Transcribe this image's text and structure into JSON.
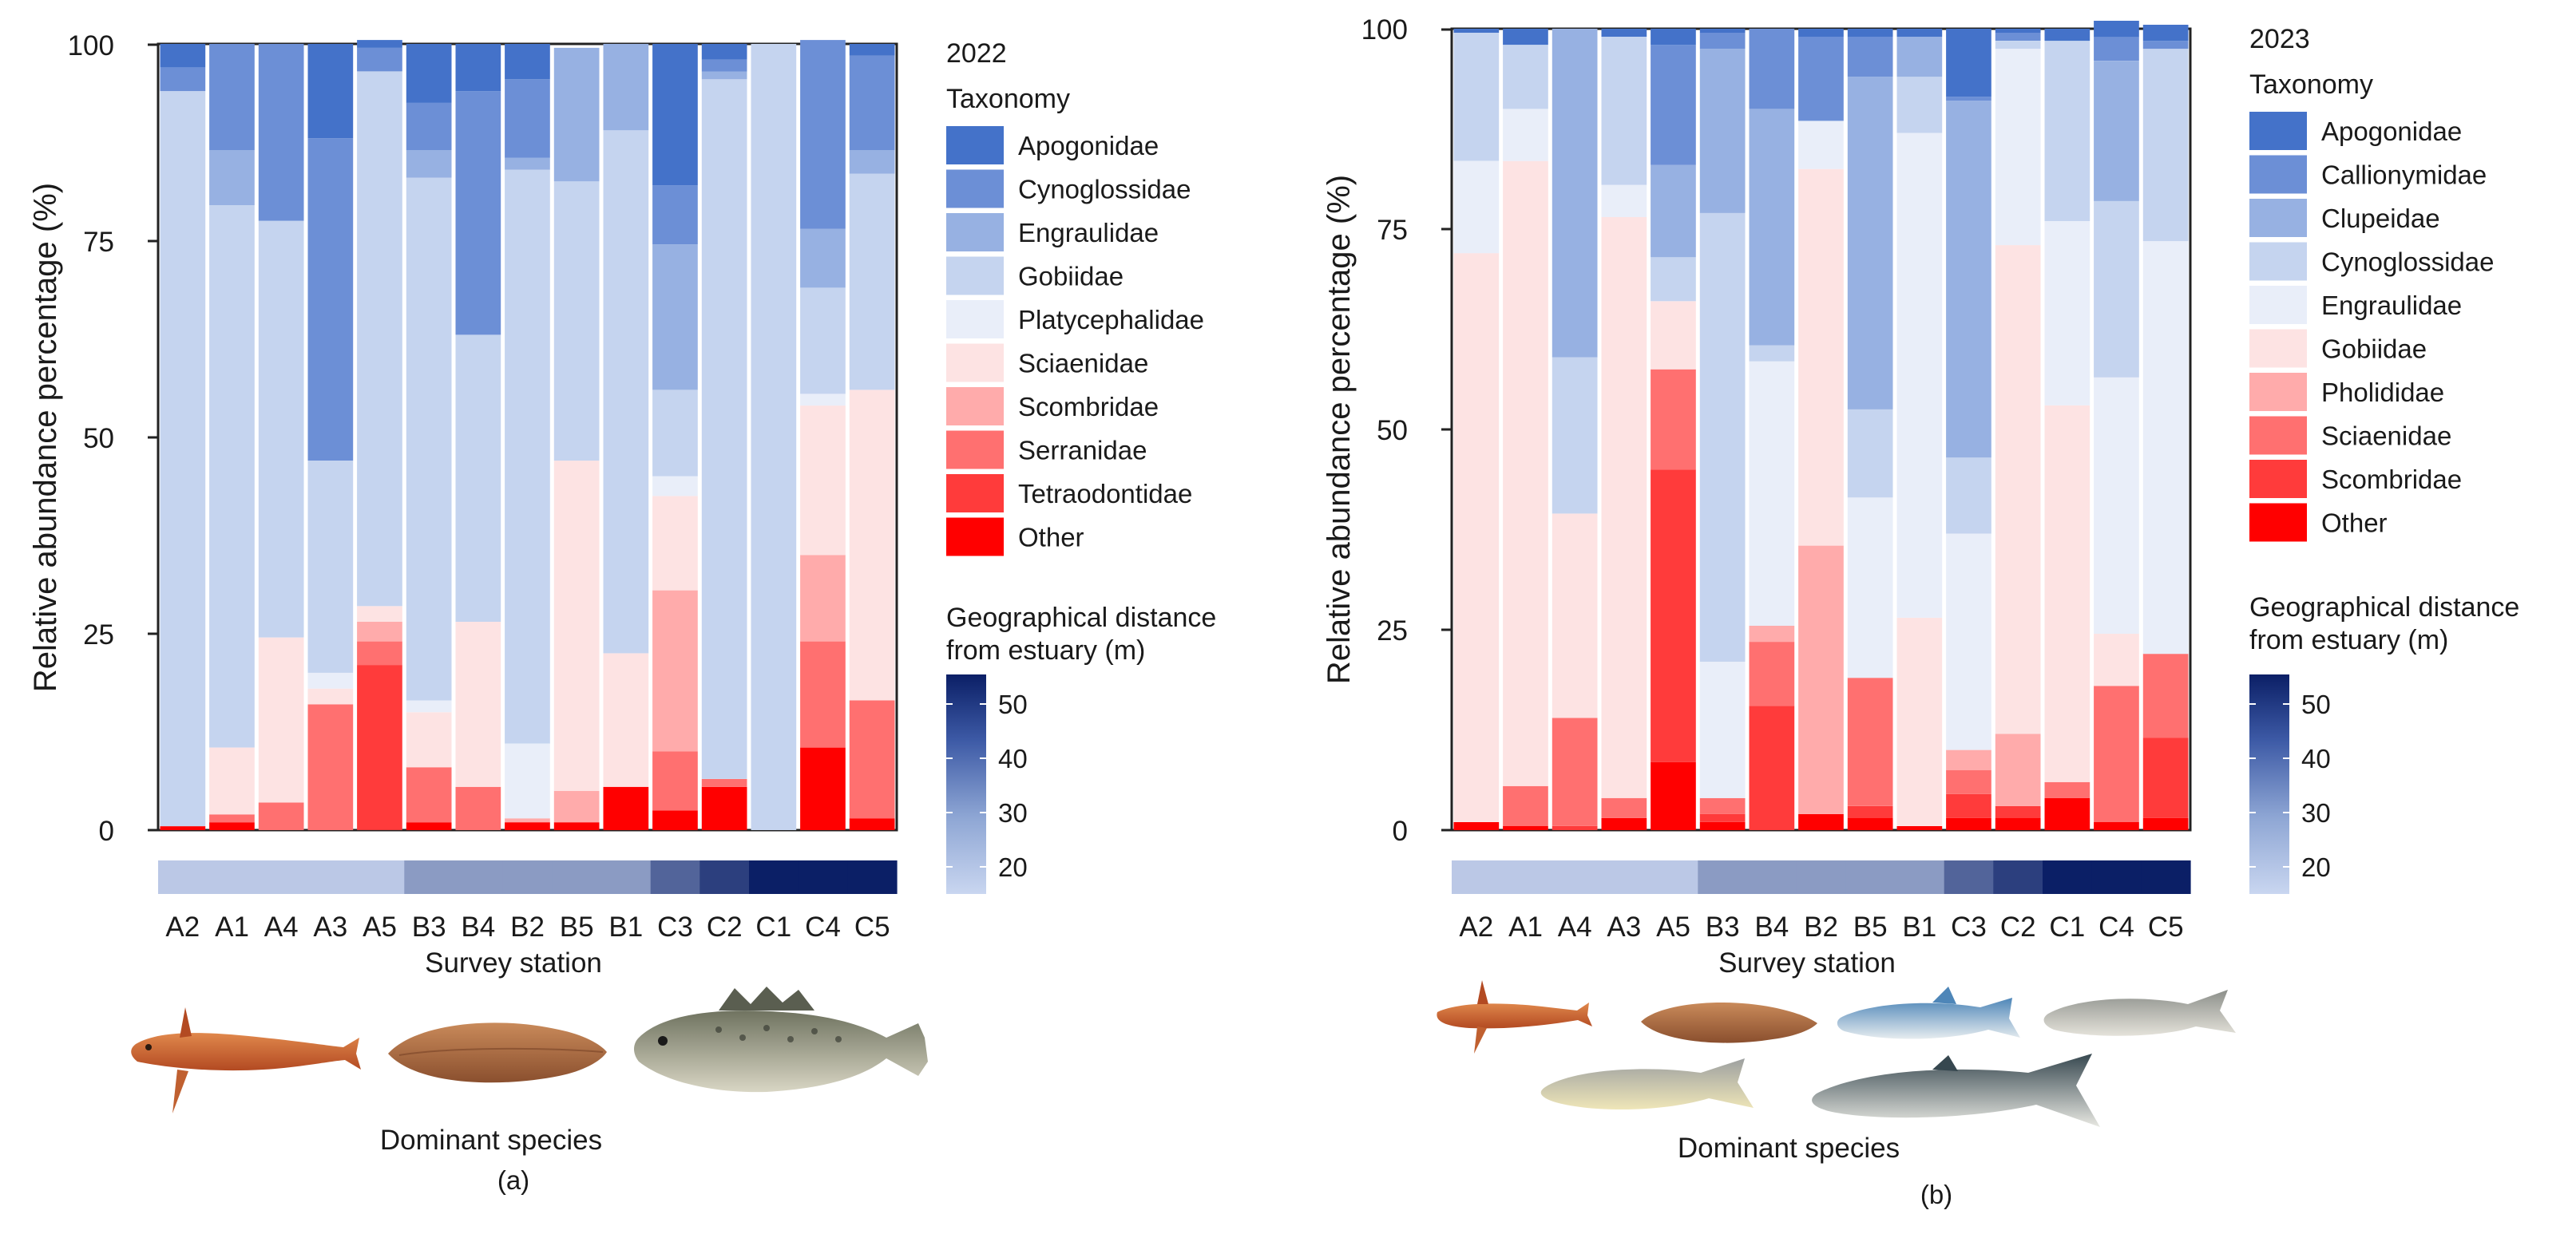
{
  "chart_data": [
    {
      "type": "bar",
      "stacked": true,
      "panel_label": "(a)",
      "year": "2022",
      "legend_title": "Taxonomy",
      "ylabel": "Relative abundance percentage (%)",
      "xlabel": "Survey station",
      "ylim": [
        0,
        100
      ],
      "yticks": [
        "0",
        "25",
        "50",
        "75",
        "100"
      ],
      "categories": [
        "A2",
        "A1",
        "A4",
        "A3",
        "A5",
        "B3",
        "B4",
        "B2",
        "B5",
        "B1",
        "C3",
        "C2",
        "C1",
        "C4",
        "C5"
      ],
      "distance_values": [
        18,
        18,
        18,
        18,
        18,
        28,
        28,
        28,
        28,
        28,
        40,
        48,
        55,
        55,
        55
      ],
      "colorbar": {
        "title_line1": "Geographical distance",
        "title_line2": "from estuary (m)",
        "ticks": [
          "20",
          "30",
          "40",
          "50"
        ],
        "min": 15,
        "max": 55
      },
      "dominant_species_label": "Dominant species",
      "series": [
        {
          "name": "Other",
          "color": "#ff0000",
          "values": [
            0.5,
            1,
            0,
            0,
            0,
            1,
            0,
            1,
            1,
            5.5,
            2.5,
            5.5,
            0,
            10.5,
            1.5
          ]
        },
        {
          "name": "Tetraodontidae",
          "color": "#ff3b3b",
          "values": [
            0,
            0,
            0,
            0,
            21,
            0,
            0,
            0,
            0,
            0,
            0,
            0,
            0,
            0,
            0
          ]
        },
        {
          "name": "Serranidae",
          "color": "#ff7070",
          "values": [
            0,
            1,
            3.5,
            16,
            3,
            7,
            5.5,
            0,
            0,
            0,
            7.5,
            1,
            0,
            13.5,
            15
          ]
        },
        {
          "name": "Scombridae",
          "color": "#ffabab",
          "values": [
            0,
            0,
            0,
            0,
            2.5,
            0,
            0,
            0.5,
            4,
            0,
            20.5,
            0,
            0,
            11,
            0
          ]
        },
        {
          "name": "Sciaenidae",
          "color": "#fde3e3",
          "values": [
            0,
            8.5,
            21,
            2,
            2,
            7,
            21,
            0,
            42,
            17,
            12,
            0,
            0,
            19,
            39.5
          ]
        },
        {
          "name": "Platycephalidae",
          "color": "#e9eef9",
          "values": [
            0,
            0,
            0,
            2,
            0,
            1.5,
            0,
            9.5,
            0,
            0,
            2.5,
            0,
            0,
            1.5,
            0
          ]
        },
        {
          "name": "Gobiidae",
          "color": "#c5d4ef",
          "values": [
            93.5,
            69,
            53,
            27,
            68,
            66.5,
            36.5,
            73,
            35.5,
            66.5,
            11,
            89,
            100,
            13.5,
            27.5
          ]
        },
        {
          "name": "Engraulidae",
          "color": "#97b1e2",
          "values": [
            0,
            7,
            0,
            0,
            0,
            3.5,
            0,
            1.5,
            17,
            11,
            18.5,
            1,
            0,
            7.5,
            3
          ]
        },
        {
          "name": "Cynoglossidae",
          "color": "#6c8fd6",
          "values": [
            3,
            13.5,
            22.5,
            41,
            3,
            6,
            31,
            10,
            0,
            0,
            7.5,
            1.5,
            0,
            24,
            12
          ]
        },
        {
          "name": "Apogonidae",
          "color": "#4472c9",
          "values": [
            3,
            0,
            0,
            12,
            1,
            7.5,
            6,
            4.5,
            0,
            0,
            18,
            2,
            0,
            0,
            1.5
          ]
        }
      ]
    },
    {
      "type": "bar",
      "stacked": true,
      "panel_label": "(b)",
      "year": "2023",
      "legend_title": "Taxonomy",
      "ylabel": "Relative abundance percentage (%)",
      "xlabel": "Survey station",
      "ylim": [
        0,
        100
      ],
      "yticks": [
        "0",
        "25",
        "50",
        "75",
        "100"
      ],
      "categories": [
        "A2",
        "A1",
        "A4",
        "A3",
        "A5",
        "B3",
        "B4",
        "B2",
        "B5",
        "B1",
        "C3",
        "C2",
        "C1",
        "C4",
        "C5"
      ],
      "distance_values": [
        18,
        18,
        18,
        18,
        18,
        28,
        28,
        28,
        28,
        28,
        40,
        48,
        55,
        55,
        55
      ],
      "colorbar": {
        "title_line1": "Geographical distance",
        "title_line2": "from estuary (m)",
        "ticks": [
          "20",
          "30",
          "40",
          "50"
        ],
        "min": 15,
        "max": 55
      },
      "dominant_species_label": "Dominant species",
      "series": [
        {
          "name": "Other",
          "color": "#ff0000",
          "values": [
            1,
            0.5,
            0,
            1.5,
            8.5,
            1,
            0,
            2,
            1.5,
            0.5,
            1.5,
            1.5,
            4,
            1,
            1.5
          ]
        },
        {
          "name": "Scombridae",
          "color": "#ff3b3b",
          "values": [
            0,
            0,
            0.5,
            0,
            36.5,
            1,
            15.5,
            0,
            1.5,
            0,
            3,
            1.5,
            0,
            0,
            10
          ]
        },
        {
          "name": "Sciaenidae",
          "color": "#ff7070",
          "values": [
            0,
            5,
            13.5,
            2.5,
            12.5,
            2,
            8,
            0,
            16,
            0,
            3,
            0,
            2,
            17,
            10.5
          ]
        },
        {
          "name": "Pholididae",
          "color": "#ffabab",
          "values": [
            0,
            0,
            0,
            0,
            0,
            0,
            2,
            33.5,
            0,
            0,
            2.5,
            9,
            0,
            0,
            0
          ]
        },
        {
          "name": "Gobiidae",
          "color": "#fde3e3",
          "values": [
            71,
            78,
            25.5,
            72.5,
            8.5,
            0,
            0,
            47,
            0,
            26,
            0,
            61,
            47,
            6.5,
            0
          ]
        },
        {
          "name": "Engraulidae",
          "color": "#e9eef9",
          "values": [
            11.5,
            6.5,
            0,
            4,
            0,
            17,
            33,
            6,
            22.5,
            60.5,
            27,
            24.5,
            23,
            32,
            51.5
          ]
        },
        {
          "name": "Cynoglossidae",
          "color": "#c5d4ef",
          "values": [
            16,
            8,
            19.5,
            18.5,
            5.5,
            56,
            2,
            0,
            11,
            7,
            9.5,
            1,
            22.5,
            22,
            24
          ]
        },
        {
          "name": "Clupeidae",
          "color": "#97b1e2",
          "values": [
            0,
            0,
            41,
            0,
            11.5,
            20.5,
            29.5,
            0,
            41.5,
            5,
            44.5,
            0,
            0,
            17.5,
            0
          ]
        },
        {
          "name": "Callionymidae",
          "color": "#6c8fd6",
          "values": [
            0,
            0,
            0,
            0,
            15,
            2,
            10,
            10.5,
            5,
            0,
            0.5,
            1,
            0,
            3,
            1
          ]
        },
        {
          "name": "Apogonidae",
          "color": "#4472c9",
          "values": [
            0.5,
            2,
            0,
            1,
            2,
            0.5,
            0,
            1,
            1,
            1,
            8.5,
            0.5,
            1.5,
            2,
            2
          ]
        }
      ]
    }
  ]
}
